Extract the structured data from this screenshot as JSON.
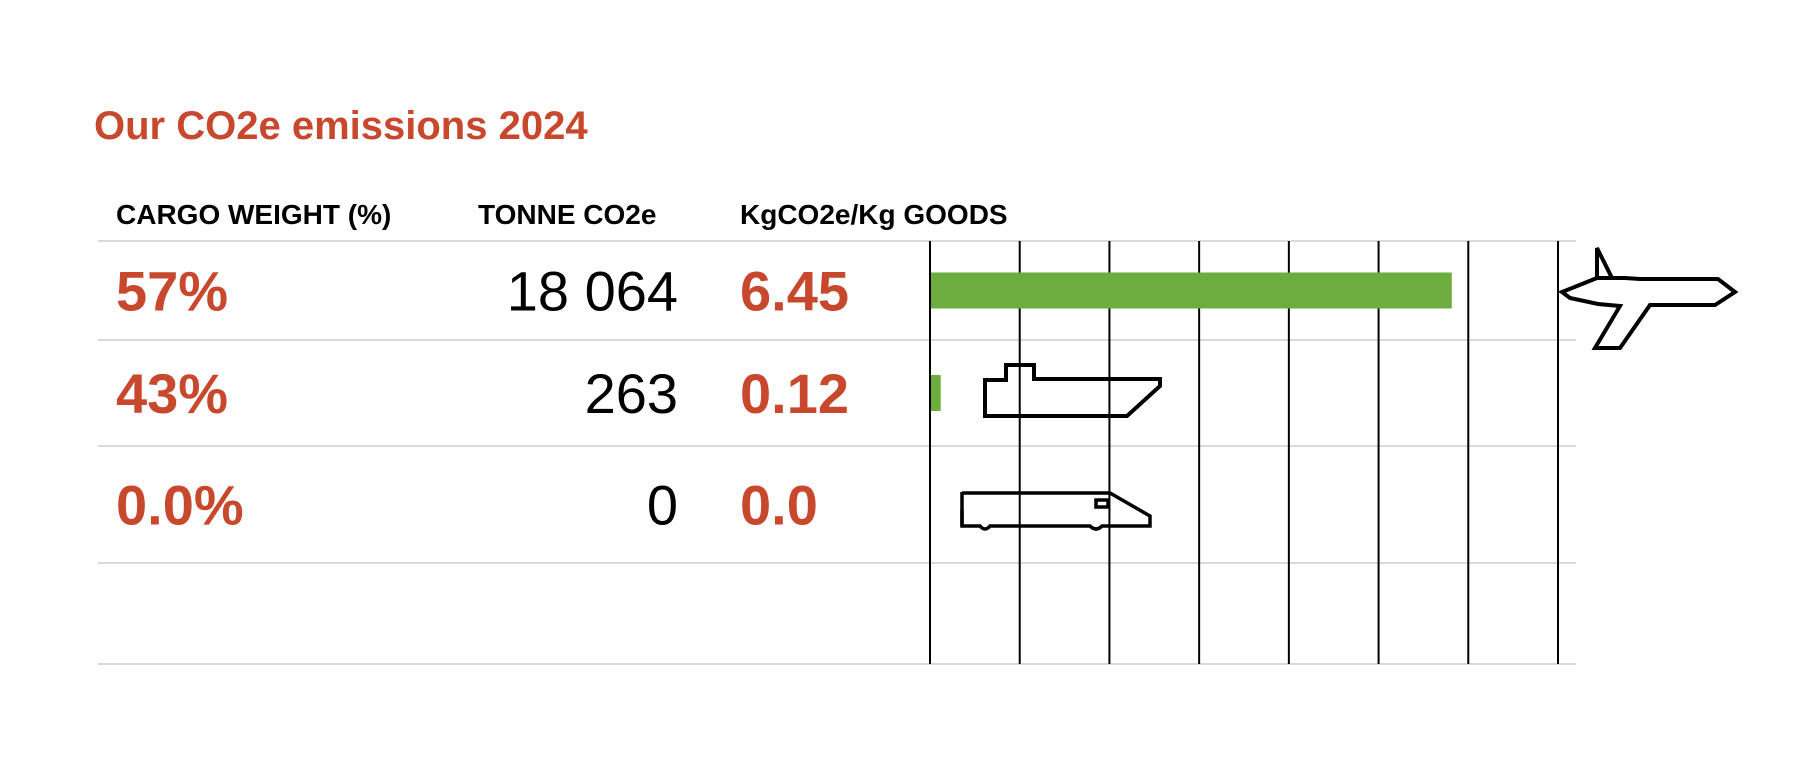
{
  "title": "Our CO2e emissions 2024",
  "headers": {
    "cargo_weight": "CARGO WEIGHT (%)",
    "tonne_co2e": "TONNE CO2e",
    "kg_per_kg": "KgCO2e/Kg GOODS"
  },
  "colors": {
    "accent": "#C8482D",
    "bar": "#6DAC3E",
    "row_line": "#D9D9D9",
    "grid_line": "#000000"
  },
  "chart_data": {
    "type": "bar",
    "orientation": "horizontal",
    "categories": [
      "air",
      "sea",
      "rail"
    ],
    "icons": [
      "airplane-icon",
      "ship-icon",
      "train-icon"
    ],
    "cargo_weight": [
      "57%",
      "43%",
      "0.0%"
    ],
    "tonne_co2e": [
      "18 064",
      "263",
      "0"
    ],
    "kg_labels": [
      "6.45",
      "0.12",
      "0.0"
    ],
    "values": [
      6.45,
      0.12,
      0.0
    ],
    "xlim": [
      0,
      7
    ],
    "grid": true,
    "gridlines": 7
  }
}
